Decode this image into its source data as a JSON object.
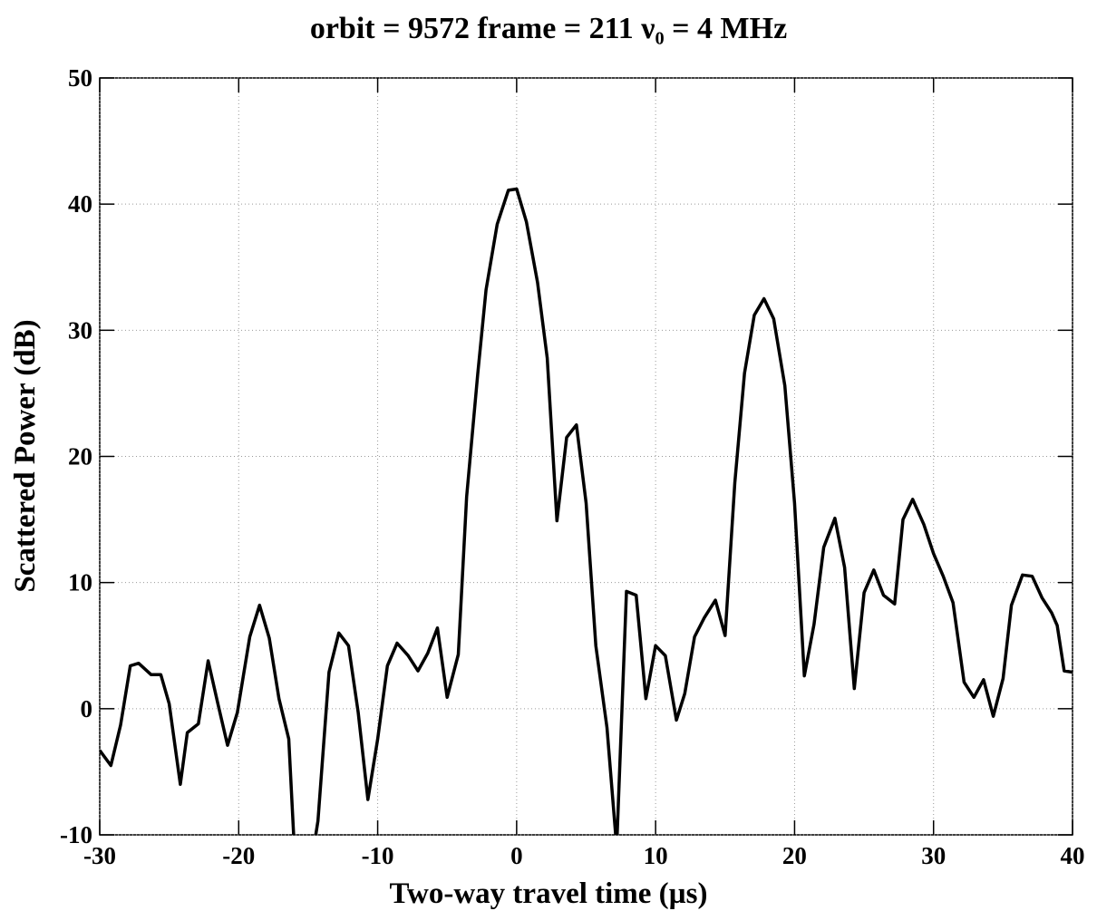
{
  "chart_data": {
    "type": "line",
    "title": "orbit = 9572  frame = 211  ν₀ = 4 MHz",
    "xlabel": "Two-way travel time (µs)",
    "ylabel": "Scattered Power (dB)",
    "xlim": [
      -30,
      40
    ],
    "ylim": [
      -10,
      50
    ],
    "xticks": [
      -30,
      -20,
      -10,
      0,
      10,
      20,
      30,
      40
    ],
    "yticks": [
      -10,
      0,
      10,
      20,
      30,
      40,
      50
    ],
    "grid": true,
    "series": [
      {
        "color": "#000000",
        "x": [
          -30,
          -29.2,
          -28.5,
          -27.8,
          -27.2,
          -26.3,
          -25.6,
          -25.0,
          -24.2,
          -23.7,
          -22.9,
          -22.2,
          -21.5,
          -20.8,
          -20.1,
          -19.2,
          -18.5,
          -17.8,
          -17.1,
          -16.4,
          -16.0,
          -14.6,
          -14.3,
          -13.5,
          -12.8,
          -12.1,
          -11.4,
          -10.7,
          -10.0,
          -9.3,
          -8.6,
          -7.8,
          -7.1,
          -6.4,
          -5.7,
          -5.0,
          -4.2,
          -3.6,
          -2.8,
          -2.2,
          -1.4,
          -0.6,
          0.0,
          0.7,
          1.5,
          2.2,
          2.9,
          3.6,
          4.3,
          5.0,
          5.7,
          6.5,
          7.2,
          7.9,
          8.6,
          9.3,
          10.0,
          10.7,
          11.5,
          12.1,
          12.8,
          13.5,
          14.3,
          15.0,
          15.7,
          16.4,
          17.1,
          17.8,
          18.5,
          19.3,
          20.0,
          20.7,
          21.4,
          22.1,
          22.9,
          23.6,
          24.3,
          25.0,
          25.7,
          26.4,
          27.2,
          27.8,
          28.5,
          29.3,
          30.0,
          30.7,
          31.4,
          32.2,
          32.9,
          33.6,
          34.3,
          35.0,
          35.6,
          36.4,
          37.1,
          37.8,
          38.5,
          38.9,
          39.4,
          40
        ],
        "values": [
          -3.3,
          -4.5,
          -1.3,
          3.4,
          3.6,
          2.7,
          2.7,
          0.4,
          -6.0,
          -1.9,
          -1.2,
          3.8,
          0.4,
          -2.9,
          -0.3,
          5.7,
          8.2,
          5.6,
          0.8,
          -2.4,
          -11,
          -11,
          -8.9,
          2.9,
          6.0,
          5.0,
          -0.3,
          -7.2,
          -2.4,
          3.4,
          5.2,
          4.2,
          3.0,
          4.4,
          6.4,
          0.9,
          4.3,
          16.8,
          26.5,
          33.2,
          38.4,
          41.1,
          41.2,
          38.6,
          33.8,
          27.8,
          14.9,
          21.5,
          22.5,
          16.3,
          5.0,
          -1.5,
          -11,
          9.3,
          9.0,
          0.8,
          5.0,
          4.2,
          -0.9,
          1.2,
          5.7,
          7.2,
          8.6,
          5.8,
          17.9,
          26.6,
          31.2,
          32.5,
          30.9,
          25.6,
          16.3,
          2.6,
          6.7,
          12.8,
          15.1,
          11.2,
          1.6,
          9.2,
          11.0,
          9.0,
          8.3,
          15.0,
          16.6,
          14.6,
          12.3,
          10.5,
          8.4,
          2.1,
          0.9,
          2.3,
          -0.6,
          2.4,
          8.2,
          10.6,
          10.5,
          8.8,
          7.6,
          6.6,
          3.0,
          2.9
        ]
      }
    ]
  }
}
